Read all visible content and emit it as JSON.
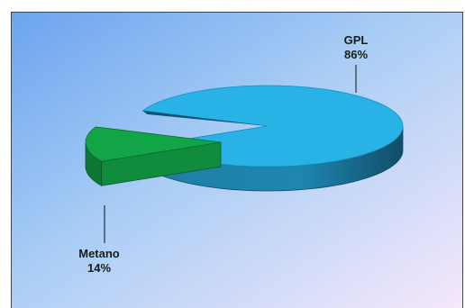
{
  "chart_data": {
    "type": "pie",
    "style": "3d-exploded",
    "slices": [
      {
        "label": "GPL",
        "value": 86,
        "value_label": "86%",
        "color": "#29b2e6"
      },
      {
        "label": "Metano",
        "value": 14,
        "value_label": "14%",
        "color": "#12a547"
      }
    ],
    "background": "gradient blue-to-lavender",
    "legend": "none"
  }
}
